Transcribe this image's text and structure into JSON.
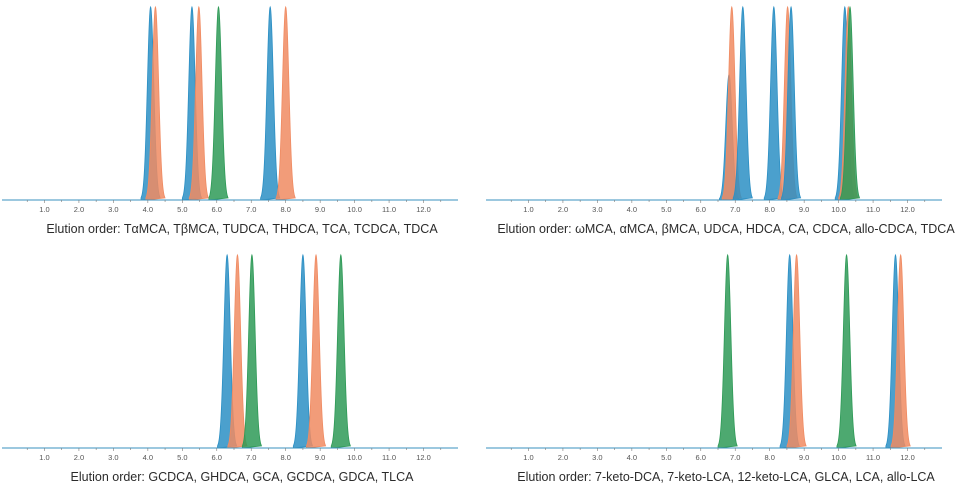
{
  "colors": {
    "blue": "#2b8fc4",
    "orange": "#f08b62",
    "green": "#2e9a57",
    "axis": "#3a92bf"
  },
  "chart_data": [
    {
      "type": "line",
      "caption": "Elution order: TαMCA, TβMCA, TUDCA, THDCA, TCA, TCDCA, TDCA",
      "x_ticks": [
        "1.0",
        "2.0",
        "3.0",
        "4.0",
        "5.0",
        "6.0",
        "7.0",
        "8.0",
        "9.0",
        "10.0",
        "11.0",
        "12.0"
      ],
      "xlim": [
        0,
        13
      ],
      "peaks": [
        {
          "x": 4.08,
          "height": 1.0,
          "color": "blue"
        },
        {
          "x": 4.22,
          "height": 1.0,
          "color": "orange"
        },
        {
          "x": 5.28,
          "height": 1.0,
          "color": "blue"
        },
        {
          "x": 5.48,
          "height": 1.0,
          "color": "orange"
        },
        {
          "x": 6.05,
          "height": 1.0,
          "color": "green"
        },
        {
          "x": 7.55,
          "height": 1.0,
          "color": "blue"
        },
        {
          "x": 8.0,
          "height": 1.0,
          "color": "orange"
        }
      ]
    },
    {
      "type": "line",
      "caption": "Elution order: ωMCA, αMCA, βMCA, UDCA, HDCA, CA, CDCA, allo-CDCA, TDCA",
      "x_ticks": [
        "1.0",
        "2.0",
        "3.0",
        "4.0",
        "5.0",
        "6.0",
        "7.0",
        "8.0",
        "9.0",
        "10.0",
        "11.0",
        "12.0"
      ],
      "xlim": [
        0,
        13
      ],
      "peaks": [
        {
          "x": 6.82,
          "height": 0.65,
          "color": "blue"
        },
        {
          "x": 6.9,
          "height": 1.0,
          "color": "orange"
        },
        {
          "x": 7.22,
          "height": 1.0,
          "color": "blue"
        },
        {
          "x": 8.12,
          "height": 1.0,
          "color": "blue"
        },
        {
          "x": 8.52,
          "height": 1.0,
          "color": "orange"
        },
        {
          "x": 8.62,
          "height": 1.0,
          "color": "blue"
        },
        {
          "x": 10.18,
          "height": 1.0,
          "color": "blue"
        },
        {
          "x": 10.28,
          "height": 1.0,
          "color": "orange"
        },
        {
          "x": 10.33,
          "height": 1.0,
          "color": "green"
        }
      ]
    },
    {
      "type": "line",
      "caption": "Elution order: GCDCA, GHDCA, GCA, GCDCA, GDCA, TLCA",
      "x_ticks": [
        "1.0",
        "2.0",
        "3.0",
        "4.0",
        "5.0",
        "6.0",
        "7.0",
        "8.0",
        "9.0",
        "10.0",
        "11.0",
        "12.0"
      ],
      "xlim": [
        0,
        13
      ],
      "peaks": [
        {
          "x": 6.3,
          "height": 1.0,
          "color": "blue"
        },
        {
          "x": 6.6,
          "height": 1.0,
          "color": "orange"
        },
        {
          "x": 7.02,
          "height": 1.0,
          "color": "green"
        },
        {
          "x": 8.5,
          "height": 1.0,
          "color": "blue"
        },
        {
          "x": 8.88,
          "height": 1.0,
          "color": "orange"
        },
        {
          "x": 9.6,
          "height": 1.0,
          "color": "green"
        }
      ]
    },
    {
      "type": "line",
      "caption": "Elution order: 7-keto-DCA, 7-keto-LCA, 12-keto-LCA, GLCA, LCA, allo-LCA",
      "x_ticks": [
        "1.0",
        "2.0",
        "3.0",
        "4.0",
        "5.0",
        "6.0",
        "7.0",
        "8.0",
        "9.0",
        "10.0",
        "11.0",
        "12.0"
      ],
      "xlim": [
        0,
        13
      ],
      "peaks": [
        {
          "x": 6.78,
          "height": 1.0,
          "color": "green"
        },
        {
          "x": 8.58,
          "height": 1.0,
          "color": "blue"
        },
        {
          "x": 8.78,
          "height": 1.0,
          "color": "orange"
        },
        {
          "x": 10.23,
          "height": 1.0,
          "color": "green"
        },
        {
          "x": 11.65,
          "height": 1.0,
          "color": "blue"
        },
        {
          "x": 11.8,
          "height": 1.0,
          "color": "orange"
        }
      ]
    }
  ]
}
